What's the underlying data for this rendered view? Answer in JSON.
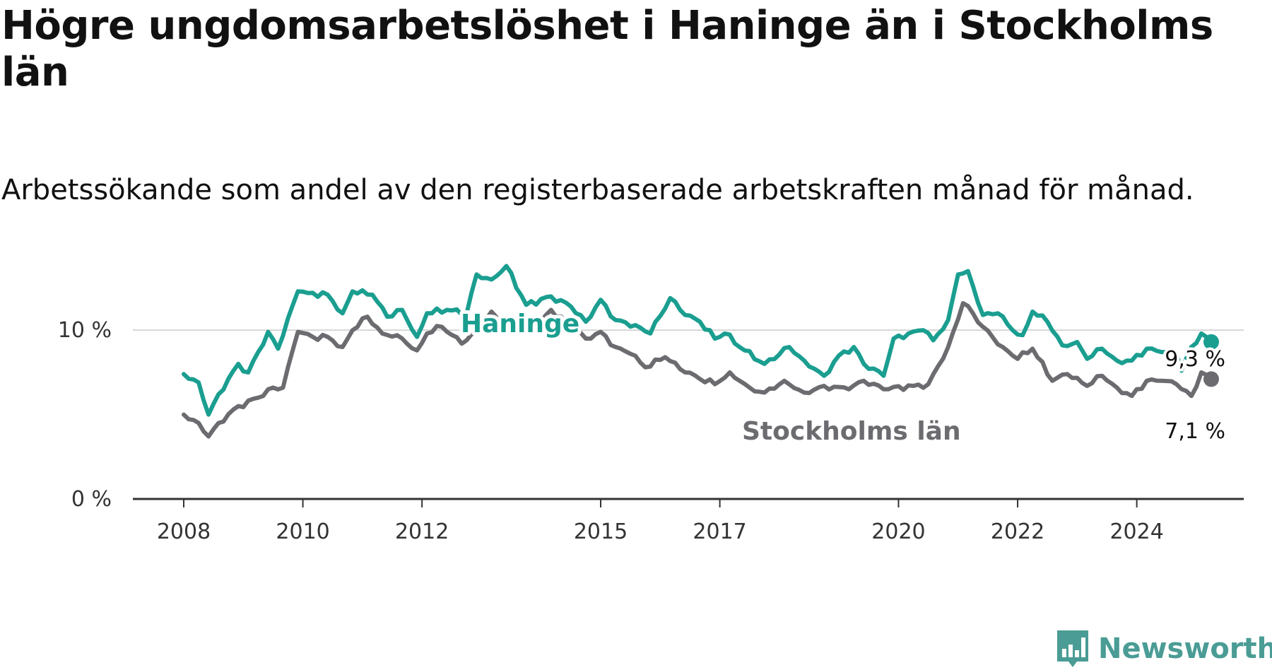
{
  "title": "Högre ungdomsarbetslöshet i Haninge än i Stockholms län",
  "subtitle": "Arbetssökande som andel av den registerbaserade arbetskraften månad för månad.",
  "brand": {
    "name": "Newsworthy",
    "color": "#4a9c95"
  },
  "chart_data": {
    "type": "line",
    "title": "Högre ungdomsarbetslöshet i Haninge än i Stockholms län",
    "subtitle": "Arbetssökande som andel av den registerbaserade arbetskraften månad för månad.",
    "x_start": "2008-01",
    "x_end": "2024-12",
    "x_tick_years": [
      2008,
      2010,
      2012,
      2015,
      2017,
      2020,
      2022,
      2024
    ],
    "y_ticks": [
      0,
      10
    ],
    "y_tick_labels": [
      "0 %",
      "10 %"
    ],
    "ylim": [
      0,
      10.3
    ],
    "grid": "horizontal",
    "frequency": "monthly",
    "series": [
      {
        "name": "Haninge",
        "color": "#1a9e90",
        "end_label": "9,3 %",
        "keyframes": [
          [
            "2008-01",
            7.4
          ],
          [
            "2008-04",
            6.9
          ],
          [
            "2008-06",
            5.0
          ],
          [
            "2008-08",
            6.2
          ],
          [
            "2008-12",
            8.0
          ],
          [
            "2009-02",
            7.5
          ],
          [
            "2009-06",
            9.9
          ],
          [
            "2009-08",
            8.9
          ],
          [
            "2009-12",
            12.3
          ],
          [
            "2010-02",
            12.2
          ],
          [
            "2010-06",
            12.1
          ],
          [
            "2010-09",
            11.0
          ],
          [
            "2010-11",
            12.3
          ],
          [
            "2011-03",
            12.1
          ],
          [
            "2011-06",
            10.8
          ],
          [
            "2011-09",
            11.2
          ],
          [
            "2011-12",
            9.6
          ],
          [
            "2012-02",
            11.0
          ],
          [
            "2012-06",
            11.2
          ],
          [
            "2012-10",
            11.0
          ],
          [
            "2012-12",
            13.3
          ],
          [
            "2013-03",
            13.0
          ],
          [
            "2013-06",
            13.8
          ],
          [
            "2013-10",
            11.5
          ],
          [
            "2014-03",
            12.0
          ],
          [
            "2014-07",
            11.4
          ],
          [
            "2014-10",
            10.5
          ],
          [
            "2015-01",
            11.8
          ],
          [
            "2015-04",
            10.6
          ],
          [
            "2015-08",
            10.3
          ],
          [
            "2015-11",
            9.8
          ],
          [
            "2016-03",
            11.9
          ],
          [
            "2016-06",
            10.9
          ],
          [
            "2016-09",
            10.5
          ],
          [
            "2016-12",
            9.5
          ],
          [
            "2017-02",
            9.8
          ],
          [
            "2017-06",
            8.8
          ],
          [
            "2017-10",
            8.0
          ],
          [
            "2018-03",
            9.0
          ],
          [
            "2018-06",
            8.2
          ],
          [
            "2018-10",
            7.3
          ],
          [
            "2019-01",
            8.5
          ],
          [
            "2019-04",
            9.0
          ],
          [
            "2019-06",
            8.0
          ],
          [
            "2019-10",
            7.3
          ],
          [
            "2019-12",
            9.5
          ],
          [
            "2020-03",
            9.8
          ],
          [
            "2020-06",
            10.0
          ],
          [
            "2020-08",
            9.4
          ],
          [
            "2020-11",
            10.6
          ],
          [
            "2021-01",
            13.3
          ],
          [
            "2021-03",
            13.5
          ],
          [
            "2021-06",
            10.9
          ],
          [
            "2021-09",
            11.0
          ],
          [
            "2021-12",
            10.0
          ],
          [
            "2022-02",
            9.7
          ],
          [
            "2022-04",
            11.1
          ],
          [
            "2022-07",
            10.5
          ],
          [
            "2022-10",
            9.1
          ],
          [
            "2023-01",
            9.3
          ],
          [
            "2023-03",
            8.3
          ],
          [
            "2023-06",
            8.9
          ],
          [
            "2023-09",
            8.2
          ],
          [
            "2023-12",
            8.2
          ],
          [
            "2024-03",
            8.9
          ],
          [
            "2024-06",
            8.7
          ],
          [
            "2024-09",
            8.6
          ],
          [
            "2024-10",
            7.6
          ],
          [
            "2024-12",
            9.0
          ],
          [
            "2025-02",
            9.8
          ],
          [
            "2025-04",
            9.3
          ]
        ]
      },
      {
        "name": "Stockholms län",
        "color": "#6b6b70",
        "end_label": "7,1 %",
        "keyframes": [
          [
            "2008-01",
            5.0
          ],
          [
            "2008-04",
            4.5
          ],
          [
            "2008-06",
            3.7
          ],
          [
            "2008-08",
            4.5
          ],
          [
            "2008-12",
            5.5
          ],
          [
            "2009-04",
            6.0
          ],
          [
            "2009-06",
            6.5
          ],
          [
            "2009-09",
            6.6
          ],
          [
            "2009-12",
            9.9
          ],
          [
            "2010-03",
            9.6
          ],
          [
            "2010-06",
            9.6
          ],
          [
            "2010-09",
            9.0
          ],
          [
            "2010-11",
            10.0
          ],
          [
            "2011-02",
            10.8
          ],
          [
            "2011-05",
            9.8
          ],
          [
            "2011-08",
            9.7
          ],
          [
            "2011-12",
            8.8
          ],
          [
            "2012-02",
            9.8
          ],
          [
            "2012-05",
            10.2
          ],
          [
            "2012-09",
            9.2
          ],
          [
            "2012-12",
            9.9
          ],
          [
            "2013-03",
            11.1
          ],
          [
            "2013-06",
            10.3
          ],
          [
            "2013-09",
            10.5
          ],
          [
            "2013-11",
            9.8
          ],
          [
            "2014-03",
            11.2
          ],
          [
            "2014-06",
            10.5
          ],
          [
            "2014-10",
            9.5
          ],
          [
            "2015-01",
            9.9
          ],
          [
            "2015-04",
            9.0
          ],
          [
            "2015-07",
            8.6
          ],
          [
            "2015-10",
            7.8
          ],
          [
            "2016-02",
            8.4
          ],
          [
            "2016-06",
            7.5
          ],
          [
            "2016-12",
            6.8
          ],
          [
            "2017-03",
            7.5
          ],
          [
            "2017-07",
            6.6
          ],
          [
            "2017-10",
            6.3
          ],
          [
            "2018-02",
            7.0
          ],
          [
            "2018-06",
            6.3
          ],
          [
            "2018-10",
            6.7
          ],
          [
            "2019-03",
            6.5
          ],
          [
            "2019-06",
            7.0
          ],
          [
            "2019-10",
            6.5
          ],
          [
            "2020-04",
            6.7
          ],
          [
            "2020-07",
            6.8
          ],
          [
            "2020-11",
            9.0
          ],
          [
            "2021-02",
            11.6
          ],
          [
            "2021-04",
            11.0
          ],
          [
            "2021-06",
            10.2
          ],
          [
            "2021-10",
            9.0
          ],
          [
            "2022-01",
            8.3
          ],
          [
            "2022-04",
            8.9
          ],
          [
            "2022-08",
            7.0
          ],
          [
            "2022-11",
            7.4
          ],
          [
            "2023-03",
            6.7
          ],
          [
            "2023-06",
            7.3
          ],
          [
            "2023-09",
            6.6
          ],
          [
            "2023-12",
            6.1
          ],
          [
            "2024-03",
            7.0
          ],
          [
            "2024-06",
            7.0
          ],
          [
            "2024-09",
            6.8
          ],
          [
            "2024-12",
            6.1
          ],
          [
            "2025-02",
            7.5
          ],
          [
            "2025-04",
            7.1
          ]
        ]
      }
    ]
  }
}
